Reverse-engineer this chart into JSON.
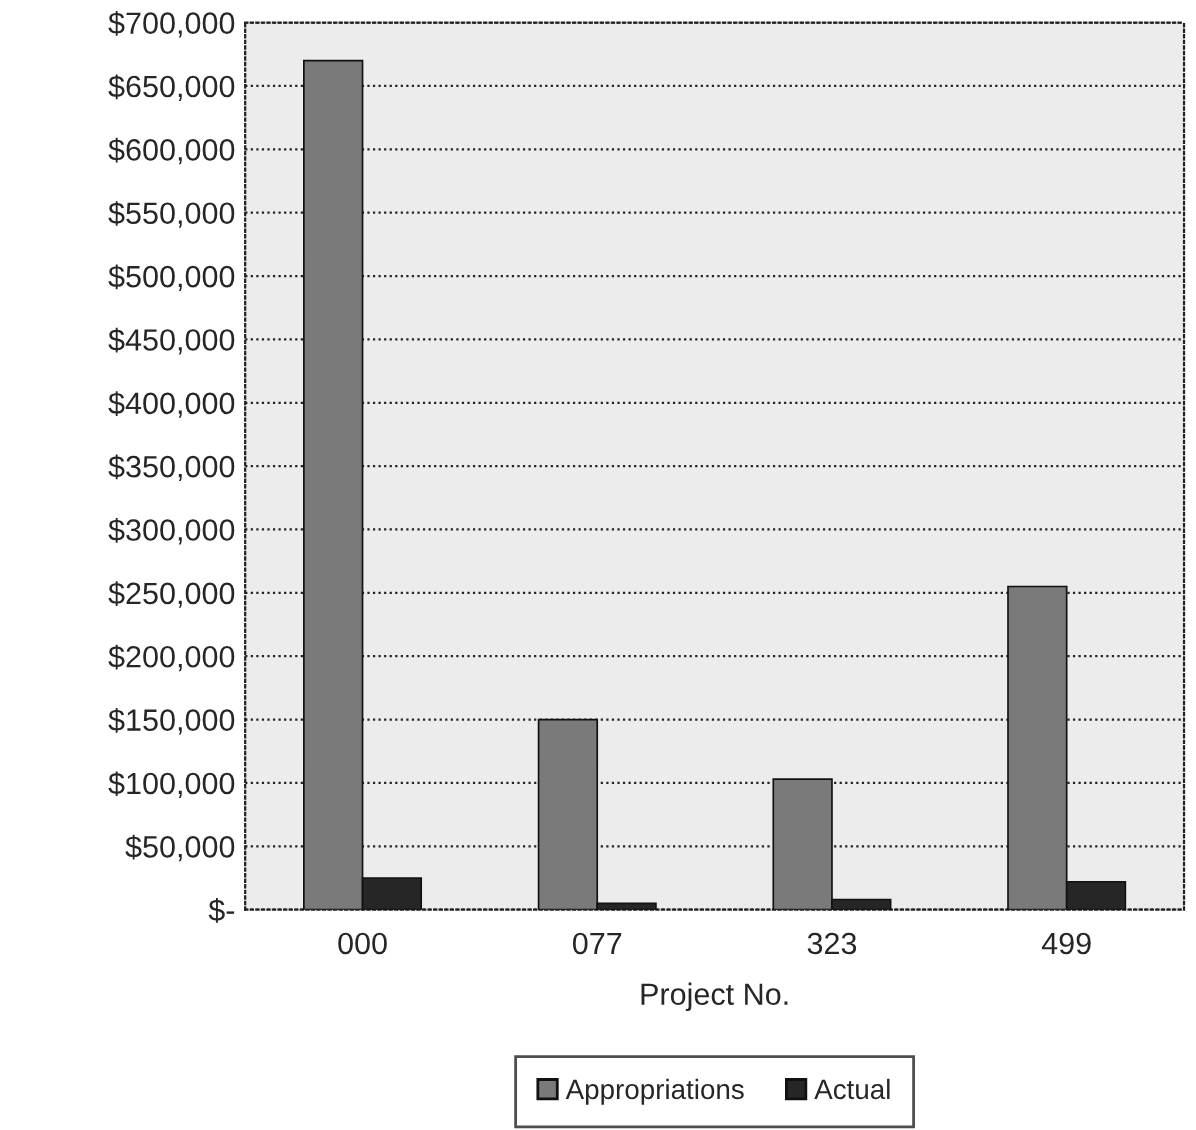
{
  "chart_data": {
    "type": "bar",
    "xlabel": "Project No.",
    "categories": [
      "000",
      "077",
      "323",
      "499"
    ],
    "series": [
      {
        "name": "Appropriations",
        "color": "#7a7a7a",
        "values": [
          670000,
          150000,
          103000,
          255000
        ]
      },
      {
        "name": "Actual",
        "color": "#262626",
        "values": [
          25000,
          5000,
          8000,
          22000
        ]
      }
    ],
    "ylim": [
      0,
      700000
    ],
    "yticks": [
      {
        "value": 0,
        "label": "$-"
      },
      {
        "value": 50000,
        "label": "$50,000"
      },
      {
        "value": 100000,
        "label": "$100,000"
      },
      {
        "value": 150000,
        "label": "$150,000"
      },
      {
        "value": 200000,
        "label": "$200,000"
      },
      {
        "value": 250000,
        "label": "$250,000"
      },
      {
        "value": 300000,
        "label": "$300,000"
      },
      {
        "value": 350000,
        "label": "$350,000"
      },
      {
        "value": 400000,
        "label": "$400,000"
      },
      {
        "value": 450000,
        "label": "$450,000"
      },
      {
        "value": 500000,
        "label": "$500,000"
      },
      {
        "value": 550000,
        "label": "$550,000"
      },
      {
        "value": 600000,
        "label": "$600,000"
      },
      {
        "value": 650000,
        "label": "$650,000"
      },
      {
        "value": 700000,
        "label": "$700,000"
      }
    ],
    "grid": "y",
    "legend": "bottom"
  }
}
